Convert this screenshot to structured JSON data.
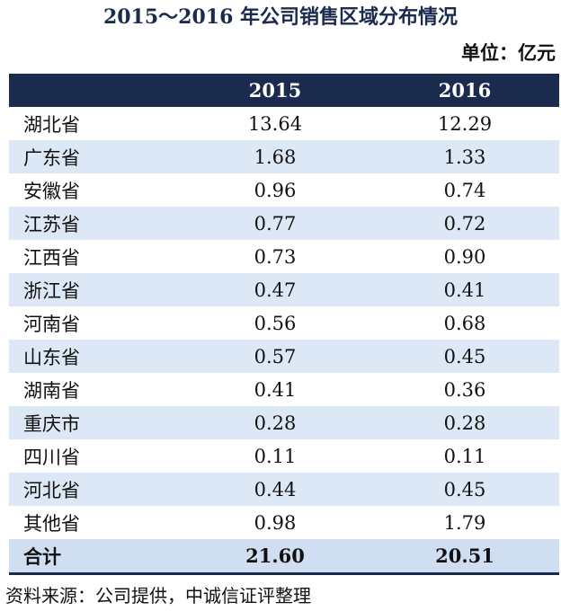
{
  "title": "2015～2016 年公司销售区域分布情况",
  "unit": "单位：亿元",
  "source": "资料来源：公司提供，中诚信证评整理",
  "colors": {
    "header_bg": "#1b2b4e",
    "stripe_bg": "#dde8f6",
    "total_bg": "#d0def2"
  },
  "chart_data": {
    "type": "table",
    "columns": [
      "",
      "2015",
      "2016"
    ],
    "rows": [
      {
        "region": "湖北省",
        "v2015": "13.64",
        "v2016": "12.29"
      },
      {
        "region": "广东省",
        "v2015": "1.68",
        "v2016": "1.33"
      },
      {
        "region": "安徽省",
        "v2015": "0.96",
        "v2016": "0.74"
      },
      {
        "region": "江苏省",
        "v2015": "0.77",
        "v2016": "0.72"
      },
      {
        "region": "江西省",
        "v2015": "0.73",
        "v2016": "0.90"
      },
      {
        "region": "浙江省",
        "v2015": "0.47",
        "v2016": "0.41"
      },
      {
        "region": "河南省",
        "v2015": "0.56",
        "v2016": "0.68"
      },
      {
        "region": "山东省",
        "v2015": "0.57",
        "v2016": "0.45"
      },
      {
        "region": "湖南省",
        "v2015": "0.41",
        "v2016": "0.36"
      },
      {
        "region": "重庆市",
        "v2015": "0.28",
        "v2016": "0.28"
      },
      {
        "region": "四川省",
        "v2015": "0.11",
        "v2016": "0.11"
      },
      {
        "region": "河北省",
        "v2015": "0.44",
        "v2016": "0.45"
      },
      {
        "region": "其他省",
        "v2015": "0.98",
        "v2016": "1.79"
      }
    ],
    "total": {
      "region": "合计",
      "v2015": "21.60",
      "v2016": "20.51"
    }
  }
}
